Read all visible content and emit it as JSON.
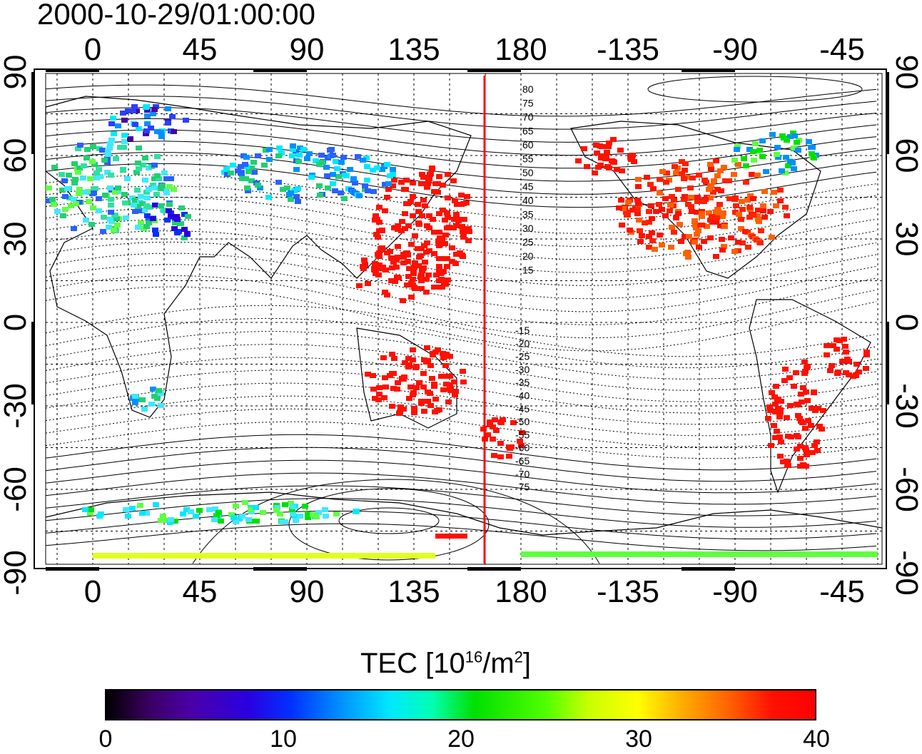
{
  "title": "2000-10-29/01:00:00",
  "map": {
    "projection": "cylindrical",
    "lon_ticks_top": [
      "0",
      "45",
      "90",
      "135",
      "180",
      "-135",
      "-90",
      "-45"
    ],
    "lon_ticks_bottom": [
      "0",
      "45",
      "90",
      "135",
      "180",
      "-135",
      "-90",
      "-45"
    ],
    "lat_ticks_left": [
      "90",
      "60",
      "30",
      "0",
      "-30",
      "-60",
      "-90"
    ],
    "lat_ticks_right": [
      "90",
      "60",
      "30",
      "0",
      "-30",
      "-60",
      "-90"
    ],
    "contour_labels": [
      "80",
      "75",
      "70",
      "65",
      "60",
      "55",
      "50",
      "45",
      "40",
      "35",
      "30",
      "25",
      "20",
      "15",
      "-15",
      "-20",
      "-25",
      "-30",
      "-35",
      "-40",
      "-45",
      "-50",
      "-55",
      "-60",
      "-65",
      "-70",
      "-75"
    ],
    "vertical_line_color": "#ff0000",
    "grid": true
  },
  "colorbar": {
    "title_prefix": "TEC  [10",
    "title_exp1": "16",
    "title_mid": "/m",
    "title_exp2": "2",
    "title_suffix": "]",
    "ticks": [
      "0",
      "10",
      "20",
      "30",
      "40"
    ],
    "min": 0,
    "max": 40
  },
  "colors": {
    "low": "#000000",
    "mid": "#00ff00",
    "high": "#ff0000"
  }
}
